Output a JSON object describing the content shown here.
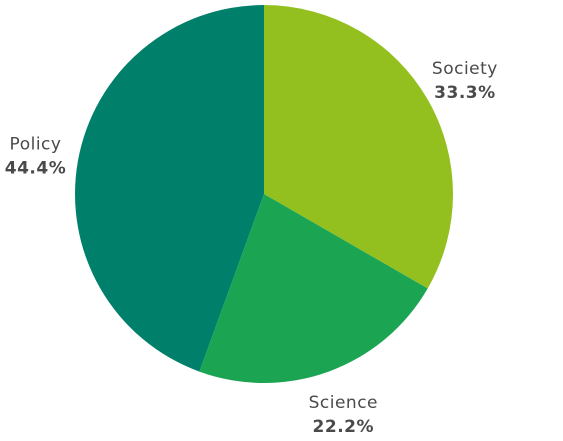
{
  "chart_data": {
    "type": "pie",
    "start_angle_deg": 0,
    "direction": "clockwise",
    "slices": [
      {
        "label": "Society",
        "value": 33.3,
        "percent_label": "33.3%",
        "color": "#93c01f"
      },
      {
        "label": "Science",
        "value": 22.2,
        "percent_label": "22.2%",
        "color": "#1ba553"
      },
      {
        "label": "Policy",
        "value": 44.4,
        "percent_label": "44.4%",
        "color": "#00806a"
      }
    ]
  }
}
